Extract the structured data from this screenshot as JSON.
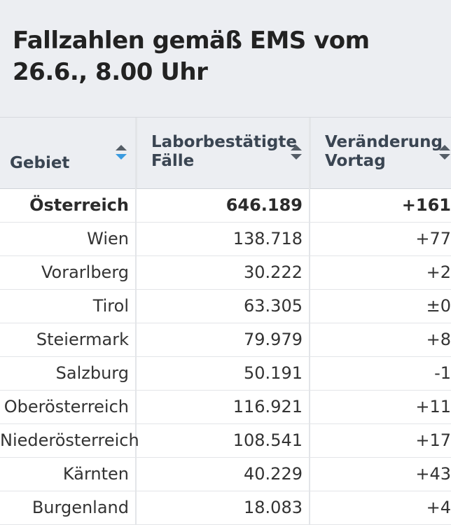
{
  "title": "Fallzahlen gemäß EMS vom 26.6., 8.00 Uhr",
  "columns": [
    {
      "label": "Gebiet",
      "sort": "descending"
    },
    {
      "label": "Laborbestätigte Fälle",
      "sort": "none"
    },
    {
      "label": "Veränderung Vortag",
      "sort": "none"
    }
  ],
  "rows": [
    {
      "region": "Österreich",
      "cases": "646.189",
      "change": "+161"
    },
    {
      "region": "Wien",
      "cases": "138.718",
      "change": "+77"
    },
    {
      "region": "Vorarlberg",
      "cases": "30.222",
      "change": "+2"
    },
    {
      "region": "Tirol",
      "cases": "63.305",
      "change": "±0"
    },
    {
      "region": "Steiermark",
      "cases": "79.979",
      "change": "+8"
    },
    {
      "region": "Salzburg",
      "cases": "50.191",
      "change": "-1"
    },
    {
      "region": "Oberösterreich",
      "cases": "116.921",
      "change": "+11"
    },
    {
      "region": "Niederösterreich",
      "cases": "108.541",
      "change": "+17"
    },
    {
      "region": "Kärnten",
      "cases": "40.229",
      "change": "+43"
    },
    {
      "region": "Burgenland",
      "cases": "18.083",
      "change": "+4"
    }
  ],
  "colors": {
    "header_bg": "#eceef2",
    "sort_active": "#3a9be0",
    "sort_inactive": "#555d66"
  }
}
